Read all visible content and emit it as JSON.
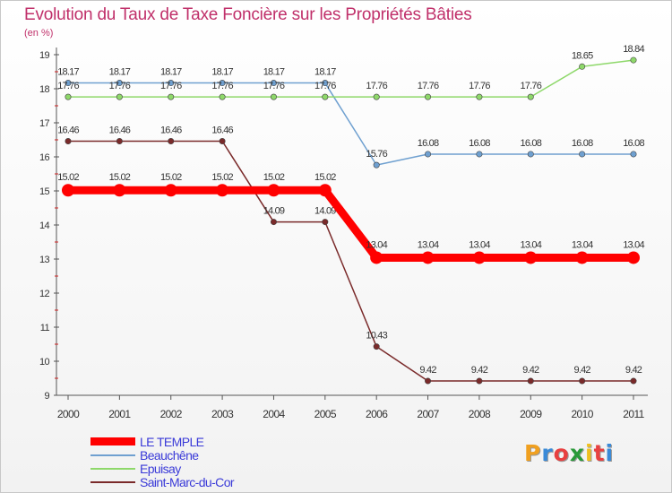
{
  "header": {
    "title": "Evolution du Taux de Taxe Foncière sur les Propriétés Bâties",
    "unit": "(en %)"
  },
  "chart_data": {
    "type": "line",
    "title": "Evolution du Taux de Taxe Foncière sur les Propriétés Bâties",
    "ylabel": "(en %)",
    "xlabel": "",
    "ylim": [
      9,
      19
    ],
    "y_ticks": [
      "9",
      "10",
      "11",
      "12",
      "13",
      "14",
      "15",
      "16",
      "17",
      "18",
      "19"
    ],
    "categories": [
      "2000",
      "2001",
      "2002",
      "2003",
      "2004",
      "2005",
      "2006",
      "2007",
      "2008",
      "2009",
      "2010",
      "2011"
    ],
    "series": [
      {
        "name": "LE TEMPLE",
        "color": "#ff0000",
        "values": [
          15.02,
          15.02,
          15.02,
          15.02,
          15.02,
          15.02,
          13.04,
          13.04,
          13.04,
          13.04,
          13.04,
          13.04
        ],
        "labels": [
          "15.02",
          "15.02",
          "15.02",
          "15.02",
          "15.02",
          "15.02",
          "13.04",
          "13.04",
          "13.04",
          "13.04",
          "13.04",
          "13.04"
        ]
      },
      {
        "name": "Beauchêne",
        "color": "#6fa0d0",
        "values": [
          18.17,
          18.17,
          18.17,
          18.17,
          18.17,
          18.17,
          15.76,
          16.08,
          16.08,
          16.08,
          16.08,
          16.08
        ],
        "labels": [
          "18.17",
          "18.17",
          "18.17",
          "18.17",
          "18.17",
          "18.17",
          "15.76",
          "16.08",
          "16.08",
          "16.08",
          "16.08",
          "16.08"
        ]
      },
      {
        "name": "Epuisay",
        "color": "#8ed86a",
        "values": [
          17.76,
          17.76,
          17.76,
          17.76,
          17.76,
          17.76,
          17.76,
          17.76,
          17.76,
          17.76,
          18.65,
          18.84
        ],
        "labels": [
          "17.76",
          "17.76",
          "17.76",
          "17.76",
          "17.76",
          "17.76",
          "17.76",
          "17.76",
          "17.76",
          "17.76",
          "18.65",
          "18.84"
        ]
      },
      {
        "name": "Saint-Marc-du-Cor",
        "color": "#7a2a2a",
        "values": [
          16.46,
          16.46,
          16.46,
          16.46,
          14.09,
          14.09,
          10.43,
          9.42,
          9.42,
          9.42,
          9.42,
          9.42
        ],
        "labels": [
          "16.46",
          "16.46",
          "16.46",
          "16.46",
          "14.09",
          "14.09",
          "10.43",
          "9.42",
          "9.42",
          "9.42",
          "9.42",
          "9.42"
        ]
      }
    ],
    "legend_position": "bottom-left",
    "grid": false
  },
  "logo": {
    "letters": [
      "P",
      "r",
      "o",
      "x",
      "i",
      "t",
      "i"
    ],
    "colors": [
      "#f0a020",
      "#3a8ad8",
      "#e84040",
      "#2a9a3a",
      "#f0c020",
      "#e84040",
      "#3a8ad8"
    ]
  }
}
